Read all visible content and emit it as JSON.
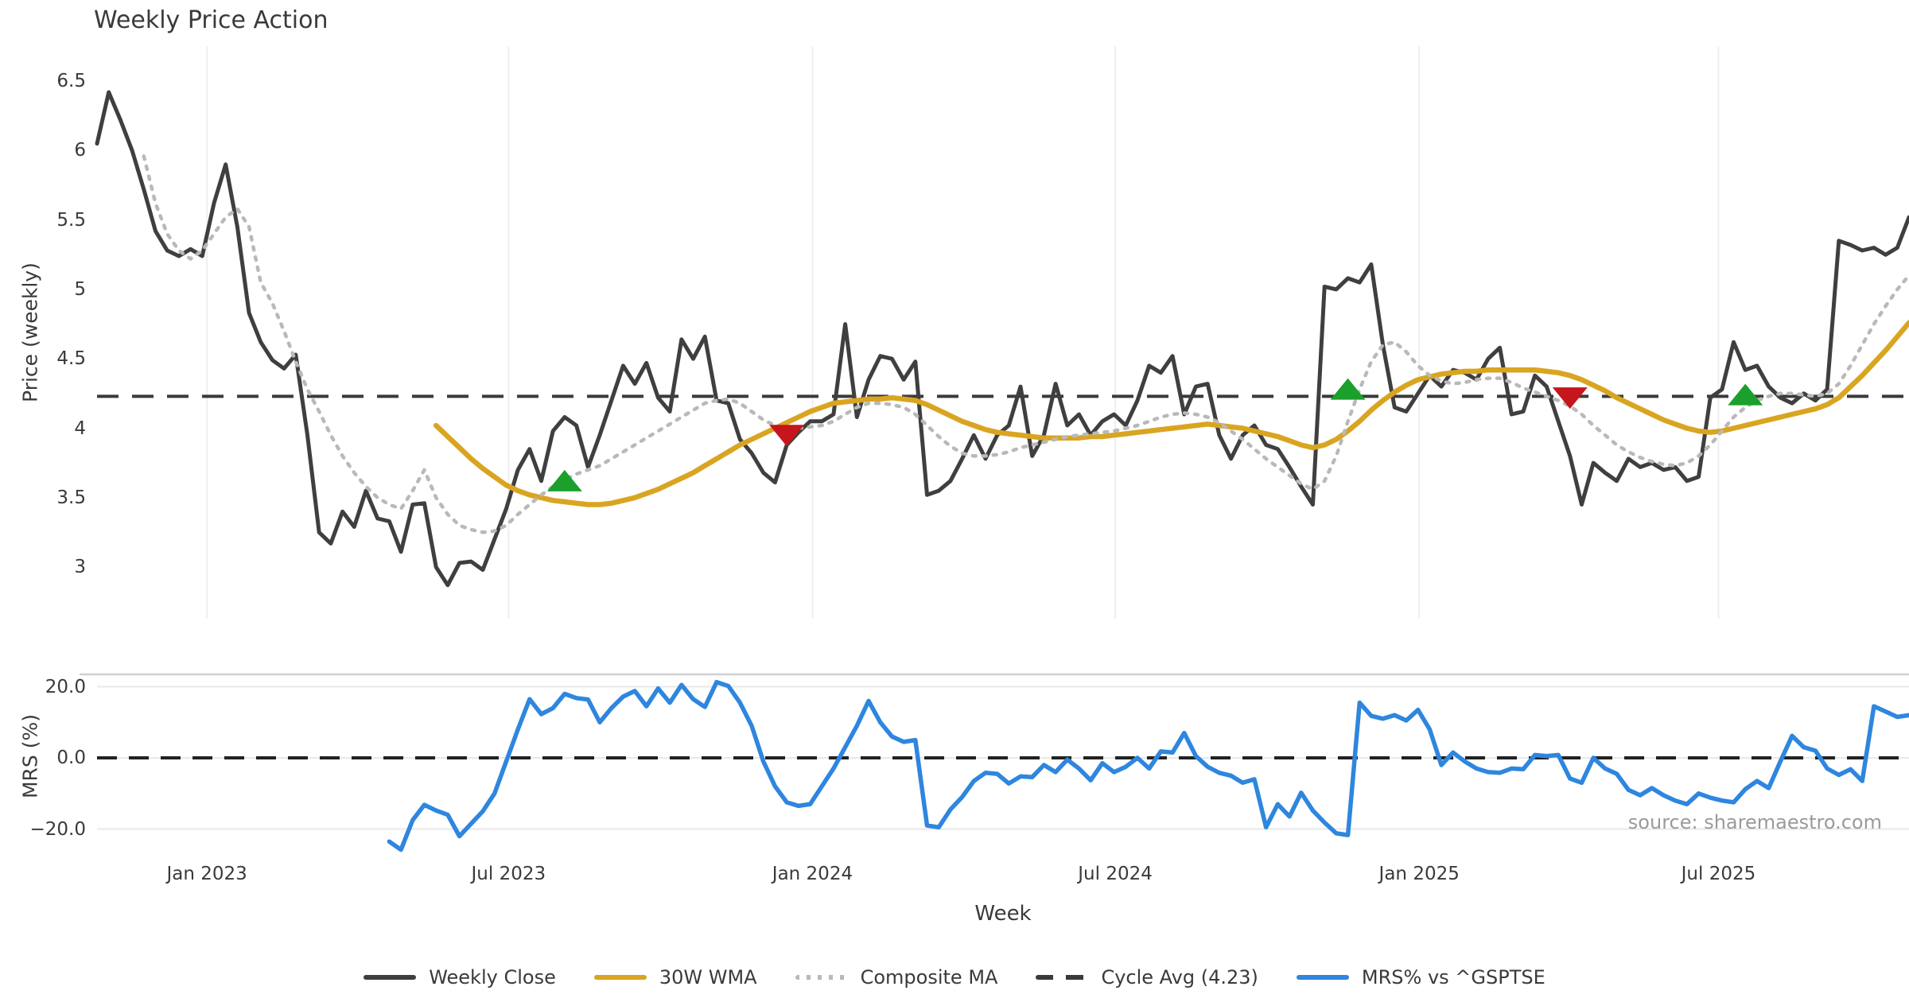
{
  "title": "Weekly Price Action",
  "axes": {
    "price_label": "Price (weekly)",
    "mrs_label": "MRS (%)",
    "x_label": "Week",
    "price_ticks": [
      "6.5",
      "6",
      "5.5",
      "5",
      "4.5",
      "4",
      "3.5",
      "3"
    ],
    "price_tick_values": [
      6.5,
      6,
      5.5,
      5,
      4.5,
      4,
      3.5,
      3
    ],
    "mrs_ticks": [
      "20.0",
      "0.0",
      "−20.0"
    ],
    "mrs_tick_values": [
      20,
      0,
      -20
    ],
    "x_ticks": [
      "Jan 2023",
      "Jul 2023",
      "Jan 2024",
      "Jul 2024",
      "Jan 2025",
      "Jul 2025"
    ],
    "x_tick_weeks": [
      9.4,
      35.2,
      61.2,
      87.1,
      113.1,
      138.7
    ]
  },
  "source": "source: sharemaestro.com",
  "colors": {
    "close": "#3f3f3f",
    "wma": "#d9a521",
    "composite": "#b9b9b9",
    "cycle": "#3a3a3a",
    "mrs": "#2e86de",
    "buy": "#1aa02b",
    "sell": "#c4161c",
    "grid": "#efefef",
    "hgrid": "#e8e8e8",
    "panel_border": "#cfcfcf",
    "text": "#3a3a3a",
    "source_text": "#9a9a9a"
  },
  "legend": [
    {
      "label": "Weekly Close",
      "type": "solid",
      "color_key": "close"
    },
    {
      "label": "30W WMA",
      "type": "solid",
      "color_key": "wma"
    },
    {
      "label": "Composite MA",
      "type": "dotted",
      "color_key": "composite"
    },
    {
      "label": "Cycle Avg (4.23)",
      "type": "dashed",
      "color_key": "cycle"
    },
    {
      "label": "MRS% vs ^GSPTSE",
      "type": "solid",
      "color_key": "mrs"
    }
  ],
  "chart_data": {
    "type": "line",
    "title": "Weekly Price Action",
    "xlabel": "Week",
    "x_unit": "week_index_from_2022-10-31",
    "total_weeks": 156,
    "panels": [
      {
        "name": "price",
        "ylabel": "Price (weekly)",
        "ylim": [
          2.65,
          6.74
        ],
        "grid": "vertical"
      },
      {
        "name": "mrs",
        "ylabel": "MRS (%)",
        "ylim": [
          -27,
          23.5
        ],
        "grid": "horizontal"
      }
    ],
    "cycle_avg": 4.23,
    "series": [
      {
        "name": "Weekly Close",
        "panel": "price",
        "style": "solid",
        "color_key": "close",
        "start_week": 0,
        "values": [
          6.05,
          6.42,
          6.22,
          6.0,
          5.72,
          5.42,
          5.28,
          5.24,
          5.29,
          5.24,
          5.62,
          5.9,
          5.45,
          4.83,
          4.62,
          4.49,
          4.43,
          4.53,
          3.95,
          3.25,
          3.17,
          3.4,
          3.29,
          3.55,
          3.35,
          3.33,
          3.11,
          3.45,
          3.46,
          3.0,
          2.87,
          3.03,
          3.04,
          2.98,
          3.2,
          3.42,
          3.7,
          3.85,
          3.62,
          3.98,
          4.08,
          4.02,
          3.72,
          3.95,
          4.2,
          4.45,
          4.32,
          4.47,
          4.22,
          4.12,
          4.64,
          4.5,
          4.66,
          4.2,
          4.18,
          3.92,
          3.82,
          3.68,
          3.61,
          3.88,
          3.97,
          4.05,
          4.05,
          4.1,
          4.75,
          4.08,
          4.35,
          4.52,
          4.5,
          4.35,
          4.48,
          3.52,
          3.55,
          3.62,
          3.78,
          3.95,
          3.78,
          3.95,
          4.02,
          4.3,
          3.8,
          3.95,
          4.32,
          4.02,
          4.1,
          3.95,
          4.05,
          4.1,
          4.02,
          4.2,
          4.45,
          4.4,
          4.52,
          4.1,
          4.3,
          4.32,
          3.95,
          3.78,
          3.95,
          4.02,
          3.88,
          3.85,
          3.72,
          3.58,
          3.45,
          5.02,
          5.0,
          5.08,
          5.05,
          5.18,
          4.6,
          4.15,
          4.12,
          4.25,
          4.38,
          4.3,
          4.42,
          4.4,
          4.35,
          4.5,
          4.58,
          4.1,
          4.12,
          4.38,
          4.3,
          4.05,
          3.8,
          3.45,
          3.75,
          3.68,
          3.62,
          3.78,
          3.72,
          3.75,
          3.7,
          3.72,
          3.62,
          3.65,
          4.22,
          4.28,
          4.62,
          4.42,
          4.45,
          4.3,
          4.22,
          4.18,
          4.25,
          4.2,
          4.28,
          5.35,
          5.32,
          5.28,
          5.3,
          5.25,
          5.3,
          5.52
        ]
      },
      {
        "name": "30W WMA",
        "panel": "price",
        "style": "solid",
        "color_key": "wma",
        "start_week": 29,
        "values": [
          4.02,
          3.94,
          3.86,
          3.78,
          3.71,
          3.65,
          3.59,
          3.55,
          3.52,
          3.5,
          3.48,
          3.47,
          3.46,
          3.45,
          3.45,
          3.46,
          3.48,
          3.5,
          3.53,
          3.56,
          3.6,
          3.64,
          3.68,
          3.73,
          3.78,
          3.83,
          3.88,
          3.92,
          3.96,
          4.0,
          4.04,
          4.08,
          4.12,
          4.15,
          4.18,
          4.19,
          4.2,
          4.21,
          4.21,
          4.22,
          4.21,
          4.2,
          4.17,
          4.13,
          4.09,
          4.05,
          4.02,
          3.99,
          3.97,
          3.96,
          3.95,
          3.94,
          3.93,
          3.93,
          3.93,
          3.93,
          3.94,
          3.94,
          3.95,
          3.96,
          3.97,
          3.98,
          3.99,
          4.0,
          4.01,
          4.02,
          4.03,
          4.02,
          4.01,
          4.0,
          3.98,
          3.96,
          3.94,
          3.91,
          3.88,
          3.86,
          3.88,
          3.92,
          3.98,
          4.05,
          4.13,
          4.2,
          4.26,
          4.31,
          4.35,
          4.37,
          4.39,
          4.4,
          4.41,
          4.41,
          4.42,
          4.42,
          4.42,
          4.42,
          4.42,
          4.41,
          4.4,
          4.38,
          4.35,
          4.31,
          4.27,
          4.22,
          4.18,
          4.14,
          4.1,
          4.06,
          4.03,
          4.0,
          3.98,
          3.97,
          3.98,
          4.0,
          4.02,
          4.04,
          4.06,
          4.08,
          4.1,
          4.12,
          4.14,
          4.17,
          4.22,
          4.3,
          4.38,
          4.47,
          4.56,
          4.66,
          4.76
        ]
      },
      {
        "name": "Composite MA",
        "panel": "price",
        "style": "dotted",
        "color_key": "composite",
        "start_week": 4,
        "values": [
          5.96,
          5.62,
          5.4,
          5.28,
          5.22,
          5.28,
          5.4,
          5.52,
          5.58,
          5.45,
          5.05,
          4.9,
          4.7,
          4.48,
          4.28,
          4.12,
          3.95,
          3.8,
          3.68,
          3.58,
          3.5,
          3.45,
          3.42,
          3.55,
          3.7,
          3.5,
          3.38,
          3.3,
          3.27,
          3.25,
          3.26,
          3.3,
          3.38,
          3.45,
          3.52,
          3.58,
          3.63,
          3.67,
          3.7,
          3.73,
          3.78,
          3.83,
          3.88,
          3.93,
          3.98,
          4.03,
          4.08,
          4.13,
          4.18,
          4.2,
          4.21,
          4.18,
          4.12,
          4.06,
          4.02,
          4.0,
          4.0,
          4.01,
          4.02,
          4.05,
          4.1,
          4.15,
          4.18,
          4.18,
          4.17,
          4.15,
          4.1,
          4.02,
          3.94,
          3.87,
          3.82,
          3.8,
          3.8,
          3.81,
          3.83,
          3.86,
          3.88,
          3.9,
          3.92,
          3.94,
          3.95,
          3.96,
          3.97,
          3.98,
          4.0,
          4.02,
          4.05,
          4.08,
          4.1,
          4.11,
          4.1,
          4.08,
          4.04,
          3.98,
          3.92,
          3.85,
          3.78,
          3.72,
          3.66,
          3.6,
          3.56,
          3.62,
          3.8,
          4.05,
          4.28,
          4.48,
          4.6,
          4.62,
          4.55,
          4.45,
          4.38,
          4.34,
          4.32,
          4.33,
          4.35,
          4.36,
          4.36,
          4.33,
          4.29,
          4.26,
          4.23,
          4.2,
          4.16,
          4.1,
          4.02,
          3.95,
          3.88,
          3.83,
          3.79,
          3.76,
          3.74,
          3.73,
          3.75,
          3.8,
          3.88,
          3.98,
          4.08,
          4.15,
          4.2,
          4.23,
          4.25,
          4.25,
          4.24,
          4.23,
          4.25,
          4.32,
          4.45,
          4.6,
          4.75,
          4.88,
          5.0,
          5.1
        ]
      },
      {
        "name": "MRS% vs ^GSPTSE",
        "panel": "mrs",
        "style": "solid",
        "color_key": "mrs",
        "start_week": 25,
        "values": [
          -23.5,
          -25.8,
          -17.5,
          -13.2,
          -14.8,
          -16.0,
          -22.0,
          -18.5,
          -15.0,
          -10.0,
          -1.0,
          8.0,
          16.5,
          12.3,
          14.0,
          18.0,
          16.8,
          16.4,
          10.0,
          14.0,
          17.2,
          18.8,
          14.5,
          19.5,
          15.5,
          20.5,
          16.5,
          14.3,
          21.3,
          20.2,
          15.5,
          9.0,
          -1.0,
          -8.0,
          -12.5,
          -13.5,
          -13.0,
          -8.0,
          -3.0,
          3.0,
          9.0,
          16.0,
          10.0,
          6.0,
          4.5,
          5.0,
          -19.0,
          -19.5,
          -14.5,
          -11.0,
          -6.5,
          -4.2,
          -4.5,
          -7.2,
          -5.2,
          -5.4,
          -2.0,
          -4.0,
          -0.5,
          -3.0,
          -6.3,
          -1.5,
          -4.0,
          -2.5,
          0.0,
          -3.0,
          1.8,
          1.5,
          7.0,
          0.5,
          -2.5,
          -4.2,
          -5.0,
          -7.0,
          -6.0,
          -19.5,
          -13.0,
          -16.5,
          -9.8,
          -14.8,
          -18.2,
          -21.2,
          -21.7,
          15.5,
          11.8,
          11.0,
          12.0,
          10.5,
          13.5,
          8.0,
          -2.0,
          1.5,
          -1.0,
          -3.0,
          -4.0,
          -4.2,
          -3.0,
          -3.2,
          0.8,
          0.5,
          0.8,
          -5.8,
          -7.0,
          0.0,
          -3.0,
          -4.5,
          -9.0,
          -10.5,
          -8.5,
          -10.5,
          -12.0,
          -13.0,
          -10.0,
          -11.2,
          -12.0,
          -12.5,
          -8.8,
          -6.5,
          -8.5,
          -1.0,
          6.2,
          3.0,
          2.0,
          -3.0,
          -4.8,
          -3.2,
          -6.5,
          14.5,
          13.0,
          11.5,
          12.0
        ]
      }
    ],
    "markers": {
      "buy": [
        {
          "week": 40,
          "price": 3.62
        },
        {
          "week": 107,
          "price": 4.28
        },
        {
          "week": 141,
          "price": 4.24
        }
      ],
      "sell": [
        {
          "week": 59,
          "price": 3.95
        },
        {
          "week": 126,
          "price": 4.22
        }
      ]
    }
  }
}
